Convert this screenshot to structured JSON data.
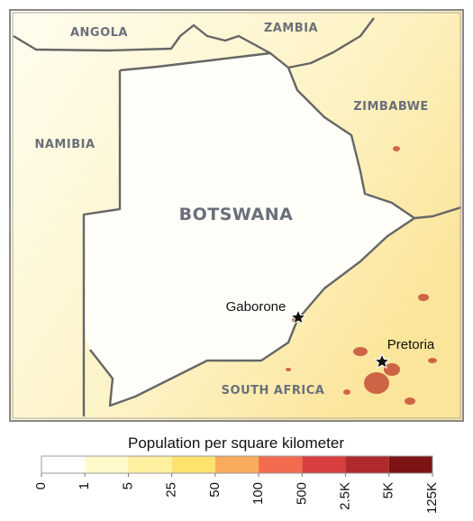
{
  "map": {
    "countries": [
      "ANGOLA",
      "ZAMBIA",
      "ZIMBABWE",
      "NAMIBIA",
      "BOTSWANA",
      "SOUTH AFRICA"
    ],
    "cities": [
      "Gaborone",
      "Pretoria"
    ],
    "legend": {
      "title": "Population per square kilometer",
      "ticks": [
        0,
        1,
        5,
        25,
        50,
        100,
        500,
        {
          "value": 2500,
          "label": "2.5K"
        },
        {
          "value": 5000,
          "label": "5K"
        },
        {
          "value": 125000,
          "label": "125K"
        }
      ],
      "colors": [
        "#ffffff",
        "#fff9cc",
        "#fff0a0",
        "#fde26e",
        "#f9ab5c",
        "#f26b4f",
        "#d8403f",
        "#b02a2b",
        "#7c1414"
      ]
    }
  }
}
